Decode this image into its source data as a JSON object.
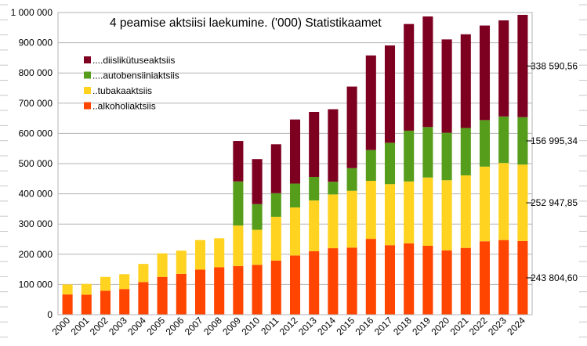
{
  "chart_data": {
    "type": "bar",
    "stacked": true,
    "title": "4 peamise aktsiisi laekumine. ('000)  Statistikaamet",
    "xlabel": "",
    "ylabel": "",
    "ylim": [
      0,
      1000000
    ],
    "ytick_values": [
      0,
      100000,
      200000,
      300000,
      400000,
      500000,
      600000,
      700000,
      800000,
      900000,
      1000000
    ],
    "ytick_labels": [
      "0",
      "100 000",
      "200 000",
      "300 000",
      "400 000",
      "500 000",
      "600 000",
      "700 000",
      "800 000",
      "900 000",
      "1 000 000"
    ],
    "grid": true,
    "legend_position": "top-left",
    "categories": [
      "2000",
      "2001",
      "2002",
      "2003",
      "2004",
      "2005",
      "2006",
      "2007",
      "2008",
      "2009",
      "2010",
      "2011",
      "2012",
      "2013",
      "2014",
      "2015",
      "2016",
      "2017",
      "2018",
      "2019",
      "2020",
      "2021",
      "2022",
      "2023",
      "2024"
    ],
    "series": [
      {
        "name": "..alkoholiaktsiis",
        "color": "#ff4500",
        "values": [
          67000,
          66000,
          79000,
          85000,
          108000,
          125000,
          135000,
          149000,
          157000,
          161000,
          165000,
          179000,
          196000,
          210000,
          220000,
          222000,
          251000,
          230000,
          236000,
          228000,
          213000,
          221000,
          243000,
          247000,
          243805
        ]
      },
      {
        "name": "..tubakaaktsiis",
        "color": "#ffd320",
        "values": [
          33000,
          36000,
          46000,
          49000,
          60000,
          78000,
          77000,
          98000,
          96000,
          134000,
          116000,
          145000,
          159000,
          168000,
          178000,
          188000,
          192000,
          202000,
          205000,
          226000,
          232000,
          240000,
          247000,
          255000,
          252948
        ]
      },
      {
        "name": "....autobensiiniaktsiis",
        "color": "#579d1c",
        "values": [
          0,
          0,
          0,
          0,
          0,
          0,
          0,
          0,
          0,
          146000,
          85000,
          78000,
          79000,
          78000,
          42000,
          75000,
          102000,
          137000,
          168000,
          167000,
          157000,
          157000,
          154000,
          154000,
          156995
        ]
      },
      {
        "name": "....diislikütuseaktsiis",
        "color": "#7e0021",
        "values": [
          0,
          0,
          0,
          0,
          0,
          0,
          0,
          0,
          0,
          134000,
          149000,
          162000,
          212000,
          215000,
          240000,
          270000,
          313000,
          322000,
          353000,
          366000,
          309000,
          310000,
          313000,
          318000,
          338591
        ]
      }
    ],
    "annotations": [
      "338 590,56",
      "156 995,34",
      "252 947,85",
      "243 804,60"
    ]
  }
}
